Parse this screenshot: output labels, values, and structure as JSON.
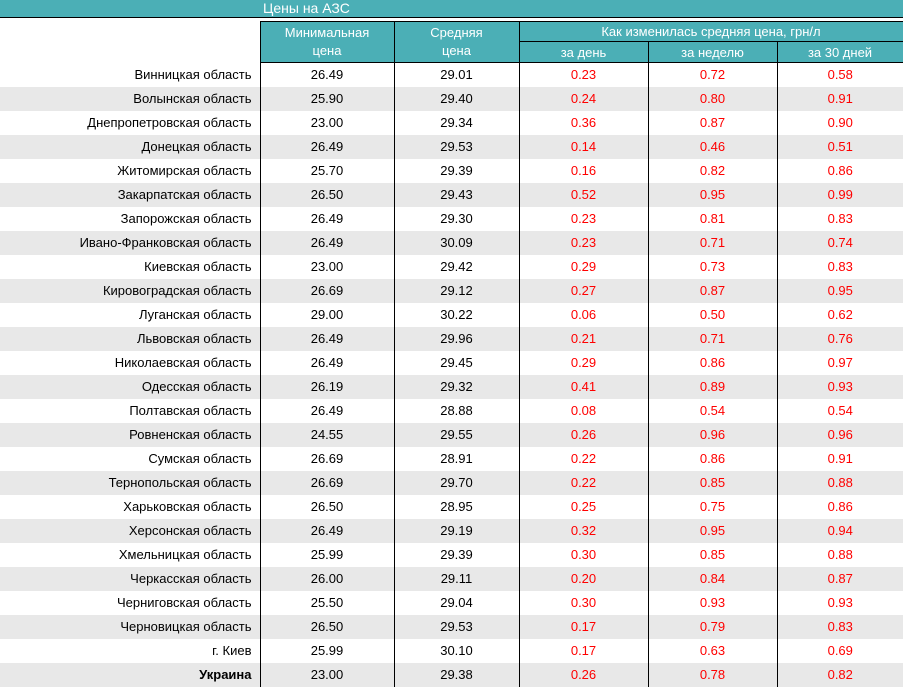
{
  "title_bar": {
    "title": "Цены на АЗС"
  },
  "header": {
    "min_price_line1": "Минимальная",
    "min_price_line2": "цена",
    "avg_price_line1": "Средняя",
    "avg_price_line2": "цена",
    "change_group": "Как изменилась средняя цена, грн/л",
    "sub": [
      "за день",
      "за неделю",
      "за 30 дней"
    ]
  },
  "colors": {
    "teal": "#4BAFB6",
    "stripe": "#E8E8E8",
    "change_red": "#FF0000",
    "grid_line": "#000000",
    "header_text": "#FFFFFF"
  },
  "chart_data": {
    "type": "table",
    "title": "Цены на АЗС",
    "column_headers": [
      "",
      "Минимальная цена",
      "Средняя цена",
      "за день",
      "за неделю",
      "за 30 дней"
    ],
    "column_group_header": "Как изменилась средняя цена, грн/л",
    "rows": [
      {
        "region": "Винницкая область",
        "min": "26.49",
        "avg": "29.01",
        "day": "0.23",
        "week": "0.72",
        "d30": "0.58"
      },
      {
        "region": "Волынская область",
        "min": "25.90",
        "avg": "29.40",
        "day": "0.24",
        "week": "0.80",
        "d30": "0.91"
      },
      {
        "region": "Днепропетровская область",
        "min": "23.00",
        "avg": "29.34",
        "day": "0.36",
        "week": "0.87",
        "d30": "0.90"
      },
      {
        "region": "Донецкая область",
        "min": "26.49",
        "avg": "29.53",
        "day": "0.14",
        "week": "0.46",
        "d30": "0.51"
      },
      {
        "region": "Житомирская область",
        "min": "25.70",
        "avg": "29.39",
        "day": "0.16",
        "week": "0.82",
        "d30": "0.86"
      },
      {
        "region": "Закарпатская область",
        "min": "26.50",
        "avg": "29.43",
        "day": "0.52",
        "week": "0.95",
        "d30": "0.99"
      },
      {
        "region": "Запорожская область",
        "min": "26.49",
        "avg": "29.30",
        "day": "0.23",
        "week": "0.81",
        "d30": "0.83"
      },
      {
        "region": "Ивано-Франковская область",
        "min": "26.49",
        "avg": "30.09",
        "day": "0.23",
        "week": "0.71",
        "d30": "0.74"
      },
      {
        "region": "Киевская область",
        "min": "23.00",
        "avg": "29.42",
        "day": "0.29",
        "week": "0.73",
        "d30": "0.83"
      },
      {
        "region": "Кировоградская область",
        "min": "26.69",
        "avg": "29.12",
        "day": "0.27",
        "week": "0.87",
        "d30": "0.95"
      },
      {
        "region": "Луганская область",
        "min": "29.00",
        "avg": "30.22",
        "day": "0.06",
        "week": "0.50",
        "d30": "0.62"
      },
      {
        "region": "Львовская область",
        "min": "26.49",
        "avg": "29.96",
        "day": "0.21",
        "week": "0.71",
        "d30": "0.76"
      },
      {
        "region": "Николаевская область",
        "min": "26.49",
        "avg": "29.45",
        "day": "0.29",
        "week": "0.86",
        "d30": "0.97"
      },
      {
        "region": "Одесская область",
        "min": "26.19",
        "avg": "29.32",
        "day": "0.41",
        "week": "0.89",
        "d30": "0.93"
      },
      {
        "region": "Полтавская область",
        "min": "26.49",
        "avg": "28.88",
        "day": "0.08",
        "week": "0.54",
        "d30": "0.54"
      },
      {
        "region": "Ровненская область",
        "min": "24.55",
        "avg": "29.55",
        "day": "0.26",
        "week": "0.96",
        "d30": "0.96"
      },
      {
        "region": "Сумская область",
        "min": "26.69",
        "avg": "28.91",
        "day": "0.22",
        "week": "0.86",
        "d30": "0.91"
      },
      {
        "region": "Тернопольская область",
        "min": "26.69",
        "avg": "29.70",
        "day": "0.22",
        "week": "0.85",
        "d30": "0.88"
      },
      {
        "region": "Харьковская область",
        "min": "26.50",
        "avg": "28.95",
        "day": "0.25",
        "week": "0.75",
        "d30": "0.86"
      },
      {
        "region": "Херсонская область",
        "min": "26.49",
        "avg": "29.19",
        "day": "0.32",
        "week": "0.95",
        "d30": "0.94"
      },
      {
        "region": "Хмельницкая область",
        "min": "25.99",
        "avg": "29.39",
        "day": "0.30",
        "week": "0.85",
        "d30": "0.88"
      },
      {
        "region": "Черкасская область",
        "min": "26.00",
        "avg": "29.11",
        "day": "0.20",
        "week": "0.84",
        "d30": "0.87"
      },
      {
        "region": "Черниговская область",
        "min": "25.50",
        "avg": "29.04",
        "day": "0.30",
        "week": "0.93",
        "d30": "0.93"
      },
      {
        "region": "Черновицкая область",
        "min": "26.50",
        "avg": "29.53",
        "day": "0.17",
        "week": "0.79",
        "d30": "0.83"
      },
      {
        "region": "г. Киев",
        "min": "25.99",
        "avg": "30.10",
        "day": "0.17",
        "week": "0.63",
        "d30": "0.69"
      },
      {
        "region": "Украина",
        "bold": true,
        "min": "23.00",
        "avg": "29.38",
        "day": "0.26",
        "week": "0.78",
        "d30": "0.82"
      }
    ]
  }
}
